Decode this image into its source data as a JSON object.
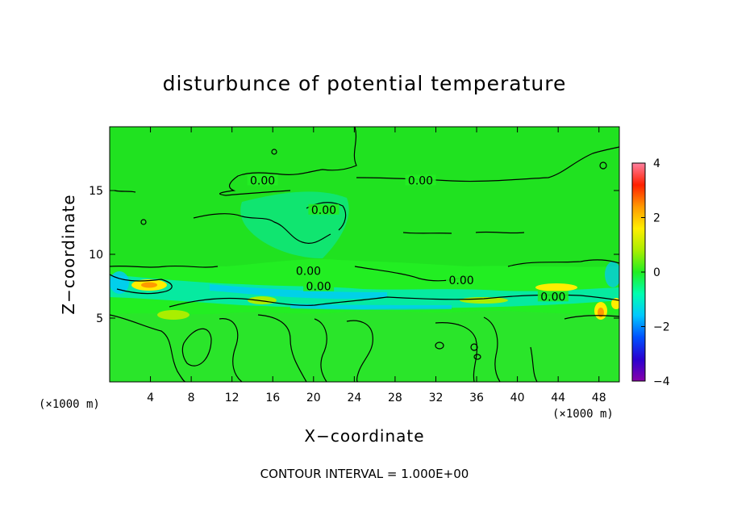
{
  "chart_data": {
    "type": "heatmap",
    "title": "disturbunce of potential temperature",
    "xlabel": "X−coordinate",
    "ylabel": "Z−coordinate",
    "x_unit": "(×1000 m)",
    "x_unit_right": "(×1000 m)",
    "xlim": [
      0,
      50
    ],
    "ylim": [
      0,
      20
    ],
    "x_ticks": [
      4,
      8,
      12,
      16,
      20,
      24,
      28,
      32,
      36,
      40,
      44,
      48
    ],
    "y_ticks": [
      5,
      10,
      15
    ],
    "colorbar": {
      "range": [
        -4,
        4
      ],
      "ticks": [
        -4,
        -2,
        0,
        2,
        4
      ],
      "colors": [
        "#8800aa",
        "#2a00d0",
        "#0050ff",
        "#00c8ff",
        "#00ffb0",
        "#22ee22",
        "#aaee00",
        "#ffee00",
        "#ff9900",
        "#ff2000",
        "#ff80a0"
      ]
    },
    "contour_labels": [
      {
        "text": "0.00",
        "x": 15.0,
        "y": 15.6
      },
      {
        "text": "0.00",
        "x": 30.5,
        "y": 15.6
      },
      {
        "text": "0.00",
        "x": 21.0,
        "y": 13.3
      },
      {
        "text": "0.00",
        "x": 19.5,
        "y": 8.5
      },
      {
        "text": "0.00",
        "x": 20.5,
        "y": 7.3
      },
      {
        "text": "0.00",
        "x": 34.5,
        "y": 7.8
      },
      {
        "text": "0.00",
        "x": 43.5,
        "y": 6.5
      }
    ],
    "contour_interval_text": "CONTOUR INTERVAL = 1.000E+00",
    "grid": false
  }
}
